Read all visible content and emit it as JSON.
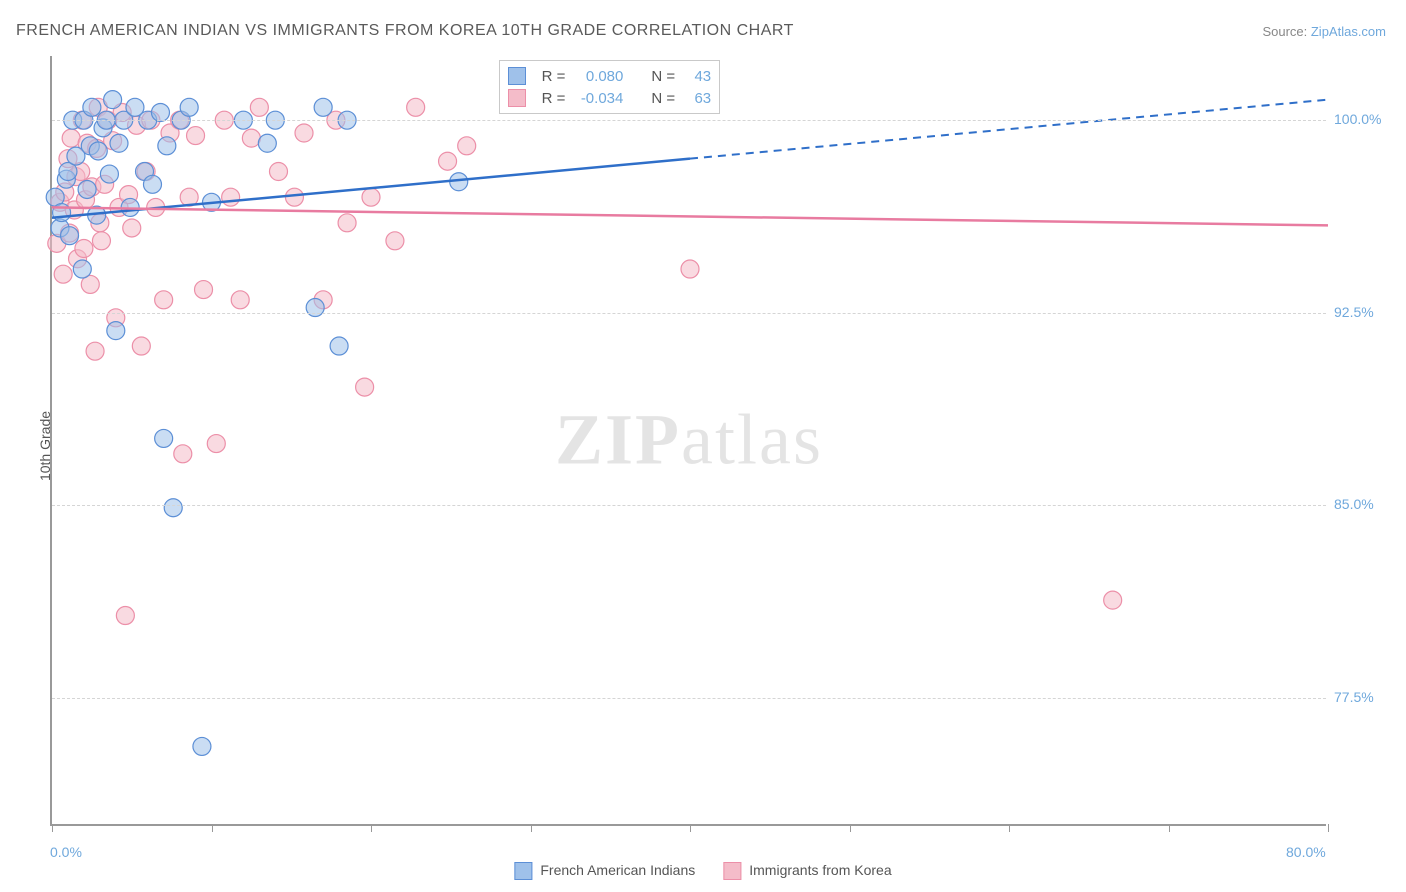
{
  "title": "FRENCH AMERICAN INDIAN VS IMMIGRANTS FROM KOREA 10TH GRADE CORRELATION CHART",
  "source_label": "Source: ",
  "source_name": "ZipAtlas.com",
  "ylabel": "10th Grade",
  "watermark_bold": "ZIP",
  "watermark_rest": "atlas",
  "chart": {
    "type": "scatter",
    "x_min": 0.0,
    "x_max": 80.0,
    "y_min": 72.5,
    "y_max": 102.5,
    "x_axis_min_label": "0.0%",
    "x_axis_max_label": "80.0%",
    "y_ticks": [
      77.5,
      85.0,
      92.5,
      100.0
    ],
    "y_tick_labels": [
      "77.5%",
      "85.0%",
      "92.5%",
      "100.0%"
    ],
    "x_tick_positions": [
      0,
      10,
      20,
      30,
      40,
      50,
      60,
      70,
      80
    ],
    "background_color": "#ffffff",
    "grid_color": "#d5d5d5",
    "axis_color": "#999999",
    "point_radius": 9,
    "point_opacity": 0.55,
    "series": [
      {
        "name": "French American Indians",
        "color_fill": "#9fc1ea",
        "color_stroke": "#5c8fd6",
        "line_color": "#2f6fc9",
        "R_label": "R = ",
        "R": "0.080",
        "N_label": "N = ",
        "N": "43",
        "regression": {
          "x1": 0,
          "y1": 96.2,
          "x2_solid": 40,
          "y2_solid": 98.5,
          "x2": 80,
          "y2": 100.8
        },
        "points": [
          [
            0.2,
            97.0
          ],
          [
            0.5,
            95.8
          ],
          [
            0.6,
            96.4
          ],
          [
            0.9,
            97.7
          ],
          [
            1.0,
            98.0
          ],
          [
            1.1,
            95.5
          ],
          [
            1.3,
            100.0
          ],
          [
            1.5,
            98.6
          ],
          [
            1.9,
            94.2
          ],
          [
            2.0,
            100.0
          ],
          [
            2.2,
            97.3
          ],
          [
            2.4,
            99.0
          ],
          [
            2.5,
            100.5
          ],
          [
            2.8,
            96.3
          ],
          [
            2.9,
            98.8
          ],
          [
            3.2,
            99.7
          ],
          [
            3.4,
            100.0
          ],
          [
            3.6,
            97.9
          ],
          [
            3.8,
            100.8
          ],
          [
            4.0,
            91.8
          ],
          [
            4.2,
            99.1
          ],
          [
            4.5,
            100.0
          ],
          [
            4.9,
            96.6
          ],
          [
            5.2,
            100.5
          ],
          [
            5.8,
            98.0
          ],
          [
            6.0,
            100.0
          ],
          [
            6.3,
            97.5
          ],
          [
            6.8,
            100.3
          ],
          [
            7.0,
            87.6
          ],
          [
            7.2,
            99.0
          ],
          [
            7.6,
            84.9
          ],
          [
            8.1,
            100.0
          ],
          [
            8.6,
            100.5
          ],
          [
            9.4,
            75.6
          ],
          [
            10.0,
            96.8
          ],
          [
            12.0,
            100.0
          ],
          [
            13.5,
            99.1
          ],
          [
            14.0,
            100.0
          ],
          [
            16.5,
            92.7
          ],
          [
            17.0,
            100.5
          ],
          [
            18.0,
            91.2
          ],
          [
            18.5,
            100.0
          ],
          [
            25.5,
            97.6
          ]
        ]
      },
      {
        "name": "Immigrants from Korea",
        "color_fill": "#f4bcc9",
        "color_stroke": "#ec8fa8",
        "line_color": "#e87ba0",
        "R_label": "R = ",
        "R": "-0.034",
        "N_label": "N = ",
        "N": "63",
        "regression": {
          "x1": 0,
          "y1": 96.6,
          "x2_solid": 80,
          "y2_solid": 95.9,
          "x2": 80,
          "y2": 95.9
        },
        "points": [
          [
            0.3,
            95.2
          ],
          [
            0.5,
            96.8
          ],
          [
            0.7,
            94.0
          ],
          [
            0.8,
            97.2
          ],
          [
            1.0,
            98.5
          ],
          [
            1.1,
            95.6
          ],
          [
            1.2,
            99.3
          ],
          [
            1.4,
            96.5
          ],
          [
            1.5,
            97.8
          ],
          [
            1.6,
            94.6
          ],
          [
            1.8,
            98.0
          ],
          [
            1.9,
            100.0
          ],
          [
            2.0,
            95.0
          ],
          [
            2.1,
            96.9
          ],
          [
            2.2,
            99.1
          ],
          [
            2.4,
            93.6
          ],
          [
            2.5,
            97.4
          ],
          [
            2.7,
            91.0
          ],
          [
            2.8,
            98.9
          ],
          [
            2.9,
            100.5
          ],
          [
            3.0,
            96.0
          ],
          [
            3.1,
            95.3
          ],
          [
            3.3,
            97.5
          ],
          [
            3.5,
            100.0
          ],
          [
            3.8,
            99.2
          ],
          [
            4.0,
            92.3
          ],
          [
            4.2,
            96.6
          ],
          [
            4.4,
            100.3
          ],
          [
            4.6,
            80.7
          ],
          [
            4.8,
            97.1
          ],
          [
            5.0,
            95.8
          ],
          [
            5.3,
            99.8
          ],
          [
            5.6,
            91.2
          ],
          [
            5.9,
            98.0
          ],
          [
            6.2,
            100.0
          ],
          [
            6.5,
            96.6
          ],
          [
            7.0,
            93.0
          ],
          [
            7.4,
            99.5
          ],
          [
            8.0,
            100.0
          ],
          [
            8.2,
            87.0
          ],
          [
            8.6,
            97.0
          ],
          [
            9.0,
            99.4
          ],
          [
            9.5,
            93.4
          ],
          [
            10.3,
            87.4
          ],
          [
            10.8,
            100.0
          ],
          [
            11.2,
            97.0
          ],
          [
            11.8,
            93.0
          ],
          [
            12.5,
            99.3
          ],
          [
            13.0,
            100.5
          ],
          [
            14.2,
            98.0
          ],
          [
            15.2,
            97.0
          ],
          [
            15.8,
            99.5
          ],
          [
            17.0,
            93.0
          ],
          [
            17.8,
            100.0
          ],
          [
            18.5,
            96.0
          ],
          [
            19.6,
            89.6
          ],
          [
            20.0,
            97.0
          ],
          [
            21.5,
            95.3
          ],
          [
            22.8,
            100.5
          ],
          [
            24.8,
            98.4
          ],
          [
            26.0,
            99.0
          ],
          [
            40.0,
            94.2
          ],
          [
            66.5,
            81.3
          ]
        ]
      }
    ]
  },
  "bottom_legend": {
    "items": [
      {
        "label": "French American Indians",
        "fill": "#9fc1ea",
        "stroke": "#5c8fd6"
      },
      {
        "label": "Immigrants from Korea",
        "fill": "#f4bcc9",
        "stroke": "#ec8fa8"
      }
    ]
  }
}
